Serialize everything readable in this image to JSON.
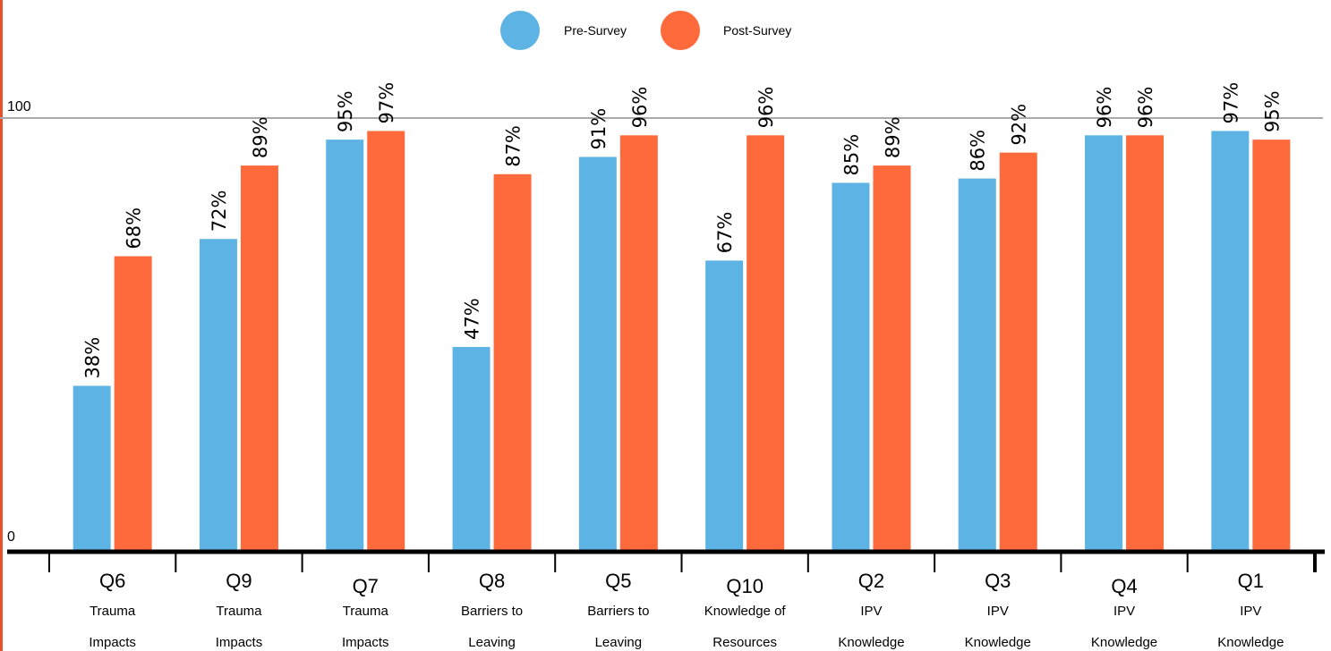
{
  "chart_data": {
    "type": "bar",
    "categories": [
      {
        "label": "Q6",
        "sub": [
          "Trauma",
          "Impacts"
        ]
      },
      {
        "label": "Q9",
        "sub": [
          "Trauma",
          "Impacts"
        ]
      },
      {
        "label": "Q7",
        "sub": [
          "Trauma",
          "Impacts"
        ]
      },
      {
        "label": "Q8",
        "sub": [
          "Barriers to",
          "Leaving"
        ]
      },
      {
        "label": "Q5",
        "sub": [
          "Barriers to",
          "Leaving"
        ]
      },
      {
        "label": "Q10",
        "sub": [
          "Knowledge of",
          "Resources"
        ]
      },
      {
        "label": "Q2",
        "sub": [
          "IPV",
          "Knowledge"
        ]
      },
      {
        "label": "Q3",
        "sub": [
          "IPV",
          "Knowledge"
        ]
      },
      {
        "label": "Q4",
        "sub": [
          "IPV",
          "Knowledge"
        ]
      },
      {
        "label": "Q1",
        "sub": [
          "IPV",
          "Knowledge"
        ]
      }
    ],
    "series": [
      {
        "name": "Pre-Survey",
        "color": "#5db4e4",
        "values": [
          38,
          72,
          95,
          47,
          91,
          67,
          85,
          86,
          96,
          97
        ],
        "labels": [
          "38%",
          "72%",
          "95%",
          "47%",
          "91%",
          "67%",
          "85%",
          "86%",
          "96%",
          "97%"
        ]
      },
      {
        "name": "Post-Survey",
        "color": "#ff6a3c",
        "values": [
          68,
          89,
          97,
          87,
          96,
          96,
          89,
          92,
          96,
          95
        ],
        "labels": [
          "68%",
          "89%",
          "97%",
          "87%",
          "96%",
          "96%",
          "89%",
          "92%",
          "96%",
          "95%"
        ]
      }
    ],
    "ylim": [
      0,
      100
    ],
    "yticks": [
      "0",
      "100"
    ],
    "grid": true,
    "legend": "top-center",
    "title": "",
    "xlabel": "",
    "ylabel": ""
  }
}
